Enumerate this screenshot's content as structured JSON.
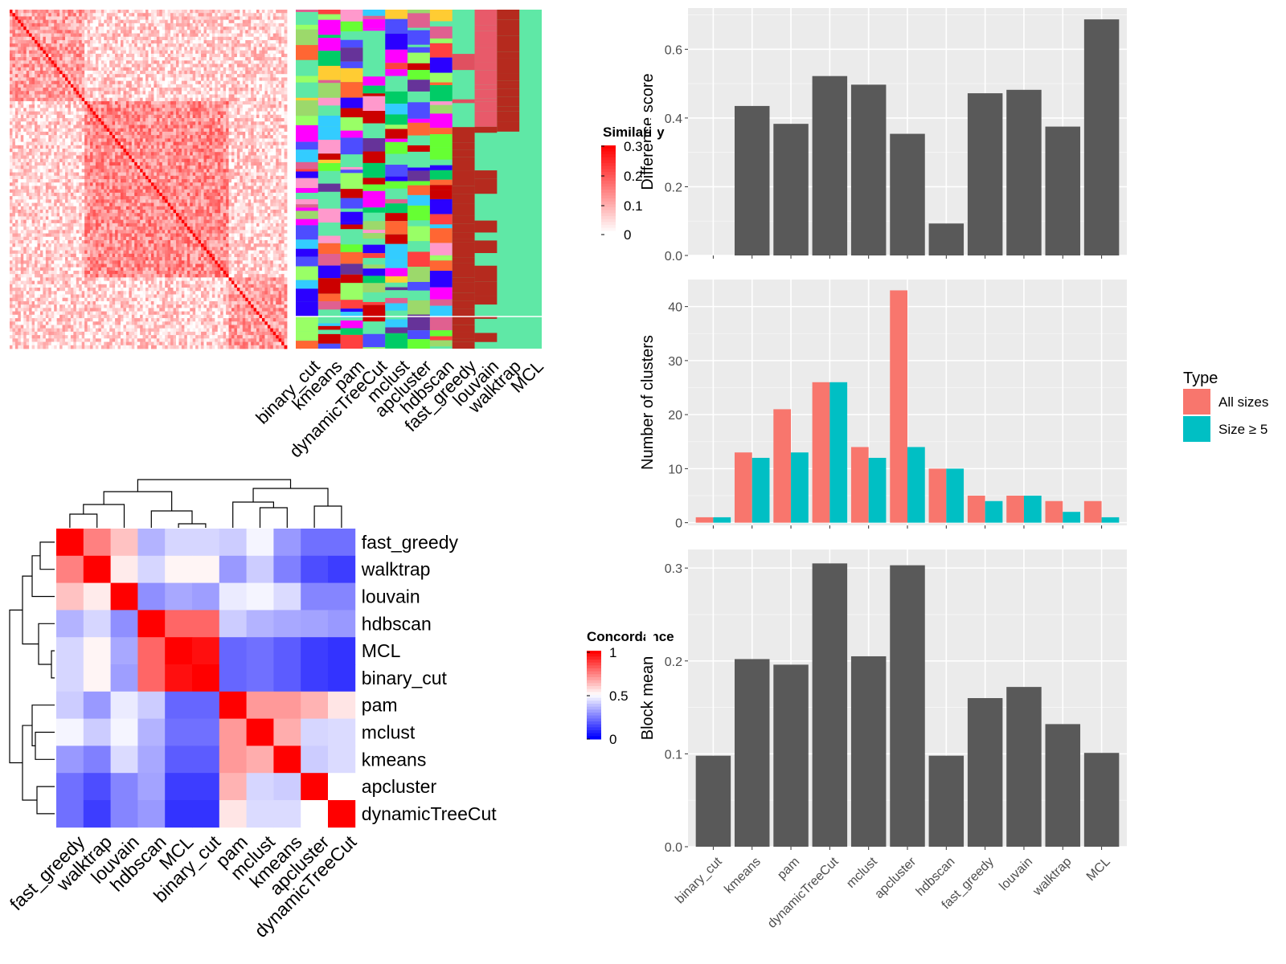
{
  "colors": {
    "panel_bg": "#ebebeb",
    "grid": "#ffffff",
    "bar_fill": "#595959",
    "all_sizes": "#f8766d",
    "size_ge5": "#00bfc4",
    "sim_high": "#ff0000",
    "sim_low": "#ffffff",
    "conc_low": "#0000ff",
    "conc_mid": "#ffffff",
    "conc_high": "#ff0000",
    "membership_bg": "#5fe8a6"
  },
  "similarity_heatmap": {
    "legend_title": "Similarity",
    "legend_ticks": [
      "0.3",
      "0.2",
      "0.1",
      "0"
    ],
    "methods": [
      "binary_cut",
      "kmeans",
      "pam",
      "dynamicTreeCut",
      "mclust",
      "apcluster",
      "hdbscan",
      "fast_greedy",
      "louvain",
      "walktrap",
      "MCL"
    ]
  },
  "concordance_heatmap": {
    "legend_title": "Concordance",
    "legend_ticks": [
      "1",
      "0.5",
      "0"
    ],
    "order": [
      "fast_greedy",
      "walktrap",
      "louvain",
      "hdbscan",
      "MCL",
      "binary_cut",
      "pam",
      "mclust",
      "kmeans",
      "apcluster",
      "dynamicTreeCut"
    ],
    "values": [
      [
        1.0,
        0.75,
        0.62,
        0.35,
        0.42,
        0.42,
        0.4,
        0.48,
        0.3,
        0.22,
        0.22
      ],
      [
        0.75,
        1.0,
        0.54,
        0.42,
        0.52,
        0.52,
        0.3,
        0.4,
        0.25,
        0.15,
        0.12
      ],
      [
        0.62,
        0.54,
        1.0,
        0.28,
        0.33,
        0.31,
        0.46,
        0.48,
        0.43,
        0.26,
        0.26
      ],
      [
        0.35,
        0.42,
        0.28,
        1.0,
        0.8,
        0.8,
        0.4,
        0.35,
        0.33,
        0.32,
        0.3
      ],
      [
        0.42,
        0.52,
        0.33,
        0.8,
        1.0,
        0.97,
        0.2,
        0.22,
        0.18,
        0.12,
        0.1
      ],
      [
        0.42,
        0.52,
        0.31,
        0.8,
        0.97,
        1.0,
        0.2,
        0.22,
        0.18,
        0.12,
        0.1
      ],
      [
        0.4,
        0.3,
        0.46,
        0.4,
        0.2,
        0.2,
        1.0,
        0.7,
        0.7,
        0.65,
        0.55
      ],
      [
        0.48,
        0.4,
        0.48,
        0.35,
        0.22,
        0.22,
        0.7,
        1.0,
        0.66,
        0.42,
        0.43
      ],
      [
        0.3,
        0.25,
        0.43,
        0.33,
        0.18,
        0.18,
        0.7,
        0.66,
        1.0,
        0.4,
        0.43
      ],
      [
        0.22,
        0.15,
        0.26,
        0.32,
        0.12,
        0.12,
        0.65,
        0.42,
        0.4,
        1.0,
        0.5
      ],
      [
        0.22,
        0.12,
        0.26,
        0.3,
        0.1,
        0.1,
        0.55,
        0.43,
        0.43,
        0.5,
        1.0
      ]
    ]
  },
  "legend": {
    "title": "Type",
    "items": [
      "All sizes",
      "Size ≥ 5"
    ]
  },
  "chart_data": [
    {
      "type": "bar",
      "categories": [
        "binary_cut",
        "kmeans",
        "pam",
        "dynamicTreeCut",
        "mclust",
        "apcluster",
        "hdbscan",
        "fast_greedy",
        "louvain",
        "walktrap",
        "MCL"
      ],
      "values": [
        0.0,
        0.435,
        0.383,
        0.522,
        0.497,
        0.354,
        0.093,
        0.472,
        0.482,
        0.375,
        0.687
      ],
      "ylabel": "Difference score",
      "ylim": [
        0,
        0.72
      ],
      "yticks": [
        "0.0",
        "0.2",
        "0.4",
        "0.6"
      ]
    },
    {
      "type": "bar",
      "categories": [
        "binary_cut",
        "kmeans",
        "pam",
        "dynamicTreeCut",
        "mclust",
        "apcluster",
        "hdbscan",
        "fast_greedy",
        "louvain",
        "walktrap",
        "MCL"
      ],
      "series": [
        {
          "name": "All sizes",
          "values": [
            1,
            13,
            21,
            26,
            14,
            43,
            10,
            5,
            5,
            4,
            4
          ]
        },
        {
          "name": "Size ≥ 5",
          "values": [
            1,
            12,
            13,
            26,
            12,
            14,
            10,
            4,
            5,
            2,
            1
          ]
        }
      ],
      "ylabel": "Number of clusters",
      "ylim": [
        -0.5,
        45
      ],
      "yticks": [
        "0",
        "10",
        "20",
        "30",
        "40"
      ]
    },
    {
      "type": "bar",
      "categories": [
        "binary_cut",
        "kmeans",
        "pam",
        "dynamicTreeCut",
        "mclust",
        "apcluster",
        "hdbscan",
        "fast_greedy",
        "louvain",
        "walktrap",
        "MCL"
      ],
      "values": [
        0.098,
        0.202,
        0.196,
        0.305,
        0.205,
        0.303,
        0.098,
        0.16,
        0.172,
        0.132,
        0.101
      ],
      "ylabel": "Block mean",
      "ylim": [
        0,
        0.32
      ],
      "yticks": [
        "0.0",
        "0.1",
        "0.2",
        "0.3"
      ]
    }
  ]
}
